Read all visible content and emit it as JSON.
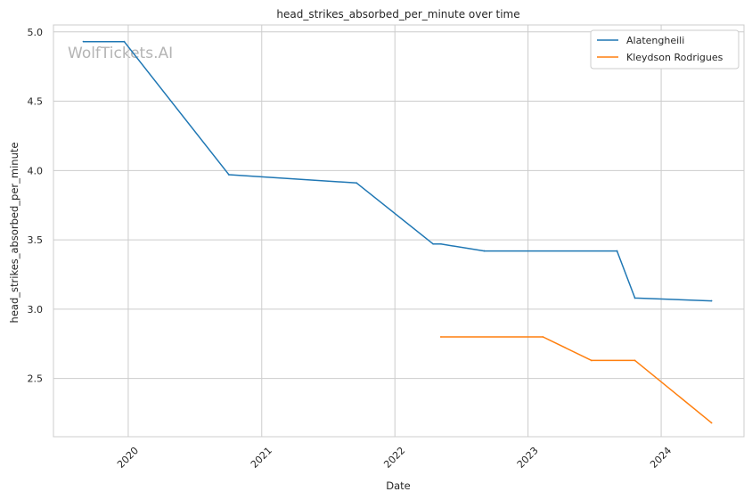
{
  "chart_data": {
    "type": "line",
    "title": "head_strikes_absorbed_per_minute over time",
    "xlabel": "Date",
    "ylabel": "head_strikes_absorbed_per_minute",
    "x_ticks": [
      "2020",
      "2021",
      "2022",
      "2023",
      "2024"
    ],
    "y_ticks": [
      "2.5",
      "3.0",
      "3.5",
      "4.0",
      "4.5",
      "5.0"
    ],
    "xlim": [
      "2019-06-10",
      "2024-08-15"
    ],
    "ylim": [
      2.08,
      5.05
    ],
    "grid": true,
    "legend_position": "top-right",
    "watermark": "WolfTickets.AI",
    "series": [
      {
        "name": "Alatengheili",
        "color": "#1f77b4",
        "points": [
          {
            "x": "2019-08-31",
            "y": 4.93
          },
          {
            "x": "2019-12-21",
            "y": 4.93
          },
          {
            "x": "2020-10-03",
            "y": 3.97
          },
          {
            "x": "2021-09-18",
            "y": 3.91
          },
          {
            "x": "2022-04-16",
            "y": 3.47
          },
          {
            "x": "2022-05-07",
            "y": 3.47
          },
          {
            "x": "2022-09-03",
            "y": 3.42
          },
          {
            "x": "2023-09-02",
            "y": 3.42
          },
          {
            "x": "2023-10-21",
            "y": 3.08
          },
          {
            "x": "2024-05-18",
            "y": 3.06
          }
        ]
      },
      {
        "name": "Kleydson Rodrigues",
        "color": "#ff7f0e",
        "points": [
          {
            "x": "2022-05-07",
            "y": 2.8
          },
          {
            "x": "2023-02-11",
            "y": 2.8
          },
          {
            "x": "2023-06-24",
            "y": 2.63
          },
          {
            "x": "2023-10-21",
            "y": 2.63
          },
          {
            "x": "2024-05-18",
            "y": 2.18
          }
        ]
      }
    ]
  }
}
